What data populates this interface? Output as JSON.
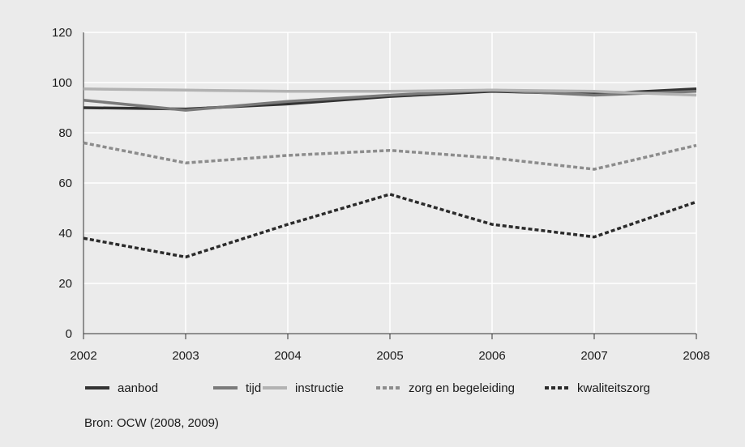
{
  "chart_data": {
    "type": "line",
    "x": [
      "2002",
      "2003",
      "2004",
      "2005",
      "2006",
      "2007",
      "2008"
    ],
    "ylim": [
      0,
      120
    ],
    "yticks": [
      0,
      20,
      40,
      60,
      80,
      100,
      120
    ],
    "grid": true,
    "legend_position": "bottom",
    "series": [
      {
        "name": "aanbod",
        "color": "#333333",
        "dash": "solid",
        "values": [
          90,
          89.5,
          91.5,
          94.5,
          96.5,
          95.5,
          97.5
        ]
      },
      {
        "name": "tijd",
        "color": "#7a7a7a",
        "dash": "solid",
        "values": [
          93,
          89,
          92.5,
          95,
          97,
          95,
          96.5
        ]
      },
      {
        "name": "instructie",
        "color": "#b2b2b2",
        "dash": "solid",
        "values": [
          97.5,
          97,
          96.5,
          96.5,
          97,
          96.5,
          95
        ]
      },
      {
        "name": "zorg en begeleiding",
        "color": "#8c8c8c",
        "dash": "dashed",
        "values": [
          76,
          68,
          71,
          73,
          70,
          65.5,
          75
        ]
      },
      {
        "name": "kwaliteitszorg",
        "color": "#2b2b2b",
        "dash": "dashed",
        "values": [
          38,
          30.5,
          43.5,
          55.5,
          43.5,
          38.5,
          52.5
        ]
      }
    ]
  },
  "source": "Bron: OCW (2008, 2009)"
}
